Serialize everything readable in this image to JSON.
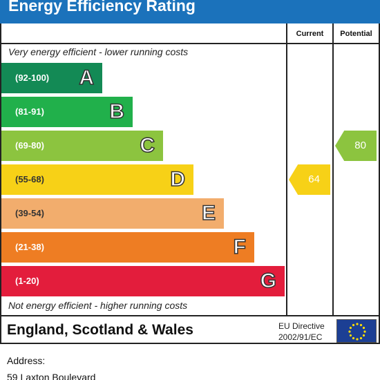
{
  "title": "Energy Efficiency Rating",
  "columns": {
    "current": "Current",
    "potential": "Potential"
  },
  "top_caption": "Very energy efficient - lower running costs",
  "bottom_caption": "Not energy efficient - higher running costs",
  "chart_data": {
    "type": "bar",
    "title": "Energy Efficiency Rating",
    "bands": [
      {
        "range": "(92-100)",
        "letter": "A",
        "color": "#138a55"
      },
      {
        "range": "(81-91)",
        "letter": "B",
        "color": "#21b04b"
      },
      {
        "range": "(69-80)",
        "letter": "C",
        "color": "#8cc43f"
      },
      {
        "range": "(55-68)",
        "letter": "D",
        "color": "#f7d117"
      },
      {
        "range": "(39-54)",
        "letter": "E",
        "color": "#f2ad6d"
      },
      {
        "range": "(21-38)",
        "letter": "F",
        "color": "#ee7d23"
      },
      {
        "range": "(1-20)",
        "letter": "G",
        "color": "#e31d3c"
      }
    ],
    "current": {
      "value": 64,
      "band": "D",
      "color": "#f7d117"
    },
    "potential": {
      "value": 80,
      "band": "C",
      "color": "#8cc43f"
    }
  },
  "footer": {
    "region": "England, Scotland & Wales",
    "directive_line1": "EU Directive",
    "directive_line2": "2002/91/EC"
  },
  "address": {
    "label": "Address:",
    "value": "59 Laxton Boulevard"
  }
}
